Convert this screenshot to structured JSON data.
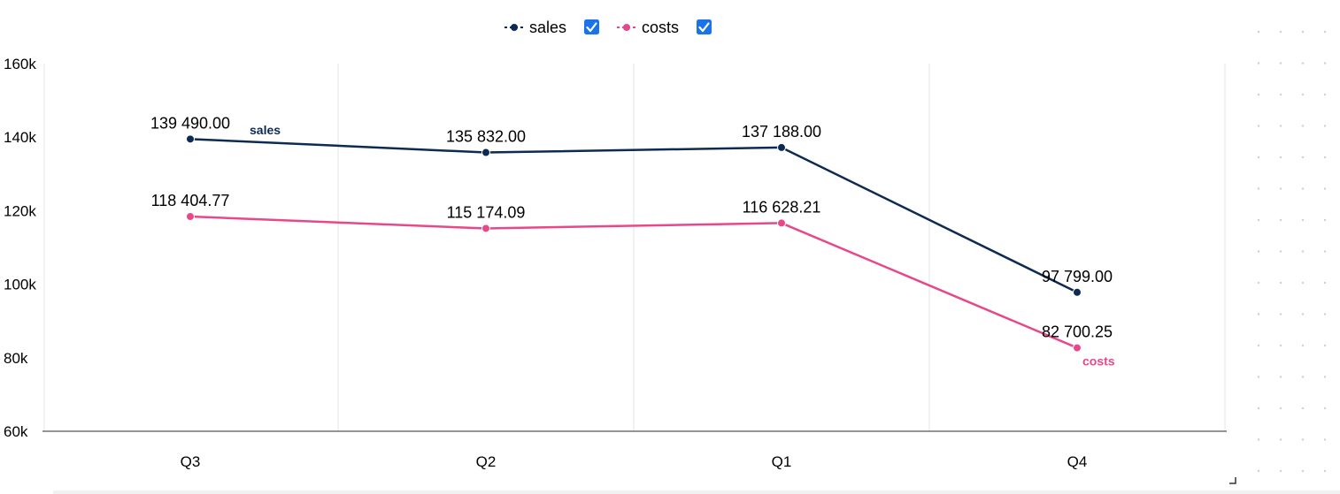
{
  "chart_data": {
    "type": "line",
    "categories": [
      "Q3",
      "Q2",
      "Q1",
      "Q4"
    ],
    "series": [
      {
        "name": "sales",
        "color": "#0d2b52",
        "values": [
          139490.0,
          135832.0,
          137188.0,
          97799.0
        ],
        "labels": [
          "139 490.00",
          "135 832.00",
          "137 188.00",
          "97 799.00"
        ],
        "legend_checked": true
      },
      {
        "name": "costs",
        "color": "#e8488a",
        "values": [
          118404.77,
          115174.09,
          116628.21,
          82700.25
        ],
        "labels": [
          "118 404.77",
          "115 174.09",
          "116 628.21",
          "82 700.25"
        ],
        "legend_checked": true
      }
    ],
    "yticks": [
      60000,
      80000,
      100000,
      120000,
      140000,
      160000
    ],
    "ytick_labels": [
      "60k",
      "80k",
      "100k",
      "120k",
      "140k",
      "160k"
    ],
    "ylim": [
      60000,
      160000
    ],
    "grid": "vertical",
    "legend_position": "top-center",
    "checkbox_color": "#1a73e8"
  }
}
